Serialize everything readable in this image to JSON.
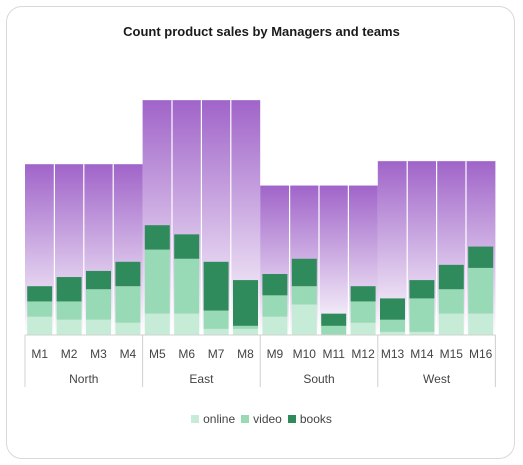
{
  "chart_data": {
    "type": "bar",
    "title": "Count product sales by Managers and teams",
    "categories": [
      "M1",
      "M2",
      "M3",
      "M4",
      "M5",
      "M6",
      "M7",
      "M8",
      "M9",
      "M10",
      "M11",
      "M12",
      "M13",
      "M14",
      "M15",
      "M16"
    ],
    "groups": [
      {
        "name": "North",
        "members": [
          "M1",
          "M2",
          "M3",
          "M4"
        ],
        "total": 56
      },
      {
        "name": "East",
        "members": [
          "M5",
          "M6",
          "M7",
          "M8"
        ],
        "total": 77
      },
      {
        "name": "South",
        "members": [
          "M9",
          "M10",
          "M11",
          "M12"
        ],
        "total": 49
      },
      {
        "name": "West",
        "members": [
          "M13",
          "M14",
          "M15",
          "M16"
        ],
        "total": 57
      }
    ],
    "series": [
      {
        "name": "online",
        "color": "#c6ecd8",
        "values": [
          6,
          5,
          5,
          4,
          7,
          7,
          2,
          2,
          6,
          10,
          0,
          4,
          1,
          1,
          7,
          7
        ]
      },
      {
        "name": "video",
        "color": "#98dab6",
        "values": [
          5,
          6,
          10,
          12,
          21,
          18,
          6,
          1,
          7,
          6,
          3,
          7,
          4,
          11,
          8,
          15
        ]
      },
      {
        "name": "books",
        "color": "#2f8b5c",
        "values": [
          5,
          8,
          6,
          8,
          8,
          8,
          16,
          15,
          7,
          9,
          4,
          5,
          7,
          6,
          8,
          7
        ]
      }
    ],
    "background_color": "#9b5cc6",
    "ylim": [
      0,
      80
    ],
    "legend_position": "bottom"
  }
}
